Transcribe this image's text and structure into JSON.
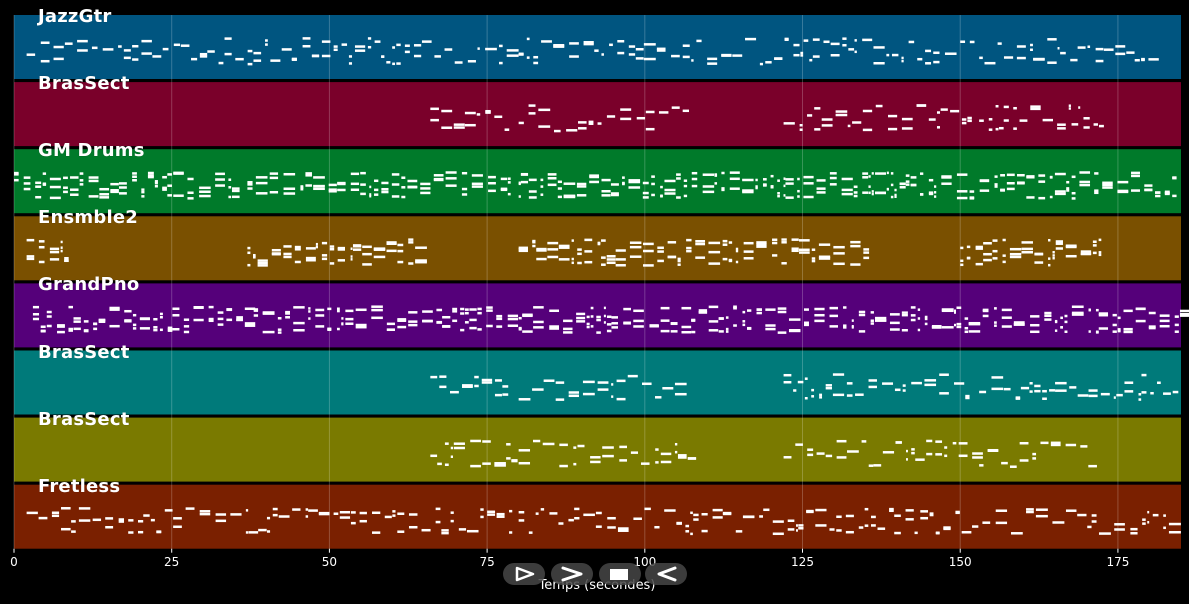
{
  "tracks": [
    {
      "name": "JazzGtr",
      "color": "#005580"
    },
    {
      "name": "BrasSect",
      "color": "#7a002a"
    },
    {
      "name": "GM Drums",
      "color": "#007a2a"
    },
    {
      "name": "Ensmble2",
      "color": "#7a5000"
    },
    {
      "name": "GrandPno",
      "color": "#55007a"
    },
    {
      "name": "BrasSect",
      "color": "#007a7a"
    },
    {
      "name": "BrasSect",
      "color": "#7a7a00"
    },
    {
      "name": "Fretless",
      "color": "#7a2000"
    }
  ],
  "x_axis": {
    "label": "Temps (secondes)",
    "ticks": [
      0,
      25,
      50,
      75,
      100,
      125,
      150,
      175
    ],
    "tick_labels": [
      "0",
      "25",
      "50",
      "75",
      "100",
      "125",
      "150",
      "175"
    ],
    "range": [
      0,
      185
    ]
  },
  "controls": [
    {
      "name": "play-icon",
      "glyph": "play"
    },
    {
      "name": "fast-forward-icon",
      "glyph": "forward"
    },
    {
      "name": "stop-icon",
      "glyph": "stop"
    },
    {
      "name": "rewind-icon",
      "glyph": "rewind"
    }
  ],
  "colors": {
    "background": "#000000",
    "note": "#ffffff",
    "grid": "#ffffff"
  }
}
